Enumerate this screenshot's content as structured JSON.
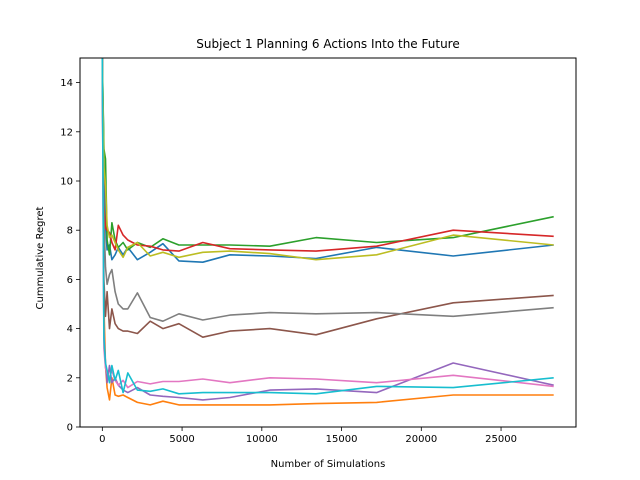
{
  "chart_data": {
    "type": "line",
    "title": "Subject 1 Planning 6 Actions Into the Future",
    "xlabel": "Number of Simulations",
    "ylabel": "Cummulative Regret",
    "xlim": [
      -1400,
      29700
    ],
    "ylim": [
      0,
      15
    ],
    "xticks": [
      0,
      5000,
      10000,
      15000,
      20000,
      25000
    ],
    "yticks": [
      0,
      2,
      4,
      6,
      8,
      10,
      12,
      14
    ],
    "xtick_labels": [
      "0",
      "5000",
      "10000",
      "15000",
      "20000",
      "25000"
    ],
    "ytick_labels": [
      "0",
      "2",
      "4",
      "6",
      "8",
      "10",
      "12",
      "14"
    ],
    "grid": false,
    "legend": "none",
    "series": [
      {
        "color": "#1f77b4",
        "x": [
          0,
          100,
          200,
          300,
          450,
          600,
          800,
          1000,
          1300,
          1600,
          2200,
          3000,
          3800,
          4800,
          6300,
          8000,
          10500,
          13400,
          17200,
          22000,
          28300
        ],
        "y": [
          15,
          11.0,
          8.2,
          7.2,
          7.4,
          6.8,
          7.0,
          7.3,
          7.0,
          7.3,
          6.8,
          7.1,
          7.45,
          6.75,
          6.7,
          7.0,
          6.95,
          6.85,
          7.3,
          6.95,
          7.4
        ]
      },
      {
        "color": "#ff7f0e",
        "x": [
          0,
          100,
          200,
          300,
          450,
          600,
          800,
          1000,
          1300,
          1600,
          2200,
          3000,
          3800,
          4800,
          6300,
          8000,
          10500,
          13400,
          17200,
          22000,
          28300
        ],
        "y": [
          15,
          5.0,
          2.5,
          1.6,
          1.1,
          2.0,
          1.3,
          1.25,
          1.3,
          1.2,
          1.0,
          0.9,
          1.05,
          0.9,
          0.9,
          0.9,
          0.9,
          0.95,
          1.0,
          1.3,
          1.3
        ]
      },
      {
        "color": "#2ca02c",
        "x": [
          0,
          100,
          200,
          300,
          450,
          600,
          800,
          1000,
          1300,
          1600,
          2200,
          3000,
          3800,
          4800,
          6300,
          8000,
          10500,
          13400,
          17200,
          22000,
          28300
        ],
        "y": [
          15,
          11.3,
          10.9,
          7.6,
          7.0,
          8.3,
          7.6,
          7.3,
          7.5,
          7.2,
          7.5,
          7.3,
          7.65,
          7.4,
          7.4,
          7.4,
          7.35,
          7.7,
          7.5,
          7.7,
          8.55
        ]
      },
      {
        "color": "#d62728",
        "x": [
          0,
          100,
          200,
          300,
          450,
          600,
          800,
          1000,
          1300,
          1600,
          2200,
          3000,
          3800,
          4800,
          6300,
          8000,
          10500,
          13400,
          17200,
          22000,
          28300
        ],
        "y": [
          15,
          9.0,
          8.1,
          8.0,
          7.9,
          7.5,
          7.2,
          8.2,
          7.8,
          7.6,
          7.4,
          7.35,
          7.2,
          7.15,
          7.5,
          7.25,
          7.2,
          7.15,
          7.35,
          8.0,
          7.75
        ]
      },
      {
        "color": "#9467bd",
        "x": [
          0,
          100,
          200,
          300,
          450,
          600,
          800,
          1000,
          1300,
          1600,
          2200,
          3000,
          3800,
          4800,
          6300,
          8000,
          10500,
          13400,
          17200,
          22000,
          28300
        ],
        "y": [
          15,
          3.8,
          2.6,
          1.8,
          2.5,
          1.8,
          2.0,
          1.7,
          1.5,
          1.4,
          1.6,
          1.3,
          1.25,
          1.2,
          1.1,
          1.2,
          1.5,
          1.55,
          1.4,
          2.6,
          1.7
        ]
      },
      {
        "color": "#8c564b",
        "x": [
          0,
          100,
          200,
          300,
          450,
          600,
          800,
          1000,
          1300,
          1600,
          2200,
          3000,
          3800,
          4800,
          6300,
          8000,
          10500,
          13400,
          17200,
          22000,
          28300
        ],
        "y": [
          15,
          6.0,
          4.5,
          5.5,
          4.0,
          4.8,
          4.2,
          4.0,
          3.9,
          3.9,
          3.8,
          4.3,
          4.0,
          4.2,
          3.65,
          3.9,
          4.0,
          3.75,
          4.4,
          5.05,
          5.35
        ]
      },
      {
        "color": "#e377c2",
        "x": [
          0,
          100,
          200,
          300,
          450,
          600,
          800,
          1000,
          1300,
          1600,
          2200,
          3000,
          3800,
          4800,
          6300,
          8000,
          10500,
          13400,
          17200,
          22000,
          28300
        ],
        "y": [
          15,
          3.2,
          2.4,
          2.2,
          2.0,
          2.3,
          1.9,
          1.7,
          1.9,
          1.6,
          1.85,
          1.75,
          1.85,
          1.85,
          1.95,
          1.8,
          2.0,
          1.95,
          1.8,
          2.1,
          1.65
        ]
      },
      {
        "color": "#7f7f7f",
        "x": [
          0,
          100,
          200,
          300,
          450,
          600,
          800,
          1000,
          1300,
          1600,
          2200,
          3000,
          3800,
          4800,
          6300,
          8000,
          10500,
          13400,
          17200,
          22000,
          28300
        ],
        "y": [
          15,
          8.5,
          6.5,
          5.8,
          6.2,
          6.4,
          5.5,
          5.0,
          4.8,
          4.8,
          5.45,
          4.45,
          4.3,
          4.6,
          4.35,
          4.55,
          4.65,
          4.6,
          4.65,
          4.5,
          4.85
        ]
      },
      {
        "color": "#bcbd22",
        "x": [
          0,
          100,
          200,
          300,
          450,
          600,
          800,
          1000,
          1300,
          1600,
          2200,
          3000,
          3800,
          4800,
          6300,
          8000,
          10500,
          13400,
          17200,
          22000,
          28300
        ],
        "y": [
          15,
          10.6,
          9.8,
          8.2,
          7.7,
          7.8,
          7.5,
          7.2,
          6.9,
          7.3,
          7.5,
          6.95,
          7.1,
          6.9,
          7.1,
          7.15,
          7.05,
          6.8,
          7.0,
          7.8,
          7.4
        ]
      },
      {
        "color": "#17becf",
        "x": [
          0,
          100,
          200,
          300,
          450,
          600,
          800,
          1000,
          1300,
          1600,
          2200,
          3000,
          3800,
          4800,
          6300,
          8000,
          10500,
          13400,
          17200,
          22000,
          28300
        ],
        "y": [
          15,
          3.6,
          2.6,
          2.3,
          1.8,
          2.5,
          1.9,
          2.3,
          1.4,
          2.2,
          1.5,
          1.45,
          1.55,
          1.35,
          1.4,
          1.4,
          1.4,
          1.35,
          1.65,
          1.6,
          2.0
        ]
      }
    ]
  }
}
